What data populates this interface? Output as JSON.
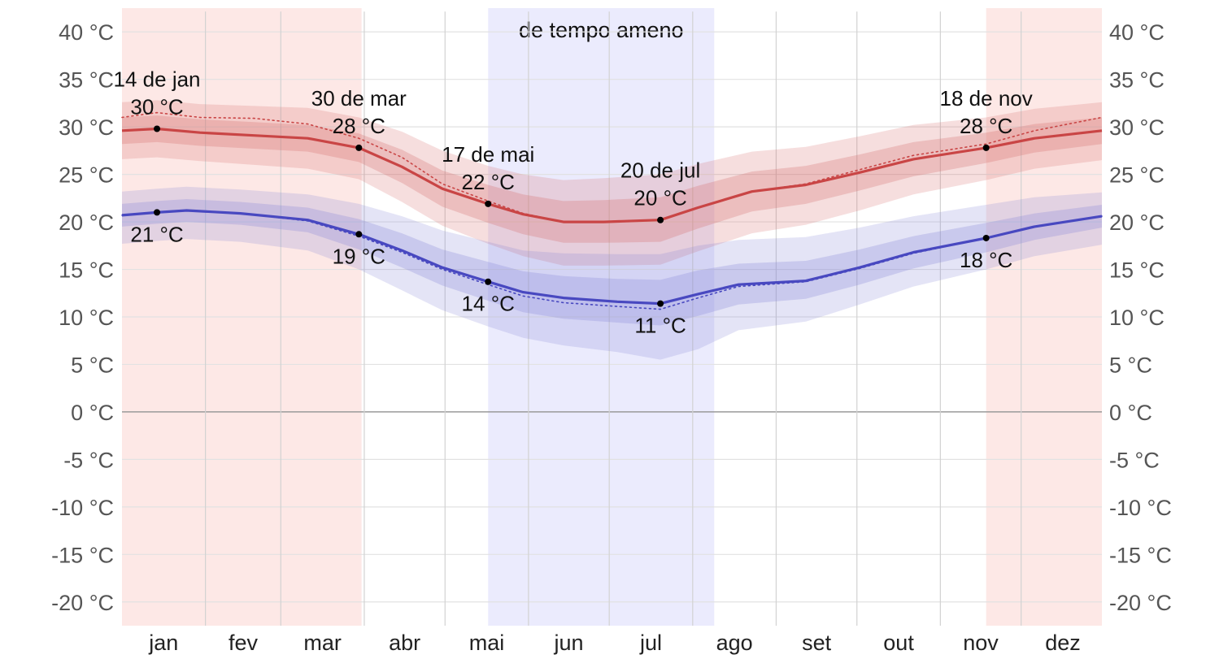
{
  "chart_data": {
    "type": "line",
    "y_unit_suffix": " °C",
    "ylim": [
      -22.5,
      42.5
    ],
    "y_ticks": [
      40,
      35,
      30,
      25,
      20,
      15,
      10,
      5,
      0,
      -5,
      -10,
      -15,
      -20
    ],
    "y_tick_labels": [
      "40 °C",
      "35 °C",
      "30 °C",
      "25 °C",
      "20 °C",
      "15 °C",
      "10 °C",
      "5 °C",
      "0 °C",
      "-5 °C",
      "-10 °C",
      "-15 °C",
      "-20 °C"
    ],
    "x_range_days": [
      1,
      365
    ],
    "months": [
      "jan",
      "fev",
      "mar",
      "abr",
      "mai",
      "jun",
      "jul",
      "ago",
      "set",
      "out",
      "nov",
      "dez"
    ],
    "month_start_days": [
      1,
      32,
      60,
      91,
      121,
      152,
      182,
      213,
      244,
      274,
      305,
      335
    ],
    "season_bands": [
      {
        "name": "warm-season",
        "start_day": 1,
        "end_day": 90,
        "color": "#fde8e6"
      },
      {
        "name": "warm-season",
        "start_day": 322,
        "end_day": 365,
        "color": "#fde8e6"
      },
      {
        "name": "cool-season",
        "start_day": 137,
        "end_day": 221,
        "color": "#ebebfd",
        "label": "de tempo ameno"
      }
    ],
    "series": [
      {
        "key": "high",
        "color": "#c94545",
        "band_color": "#d46a6a",
        "points": [
          {
            "day": 1,
            "mean": 29.6,
            "p25": 28.2,
            "p75": 31.0,
            "p10": 26.6,
            "p90": 32.6,
            "dotted": 31.0
          },
          {
            "day": 14,
            "mean": 29.8,
            "p25": 28.4,
            "p75": 31.2,
            "p10": 26.8,
            "p90": 32.8,
            "dotted": 31.5
          },
          {
            "day": 30,
            "mean": 29.4,
            "p25": 28.0,
            "p75": 30.8,
            "p10": 26.4,
            "p90": 32.4,
            "dotted": 31.0
          },
          {
            "day": 50,
            "mean": 29.1,
            "p25": 27.7,
            "p75": 30.5,
            "p10": 26.0,
            "p90": 32.2,
            "dotted": 30.9
          },
          {
            "day": 70,
            "mean": 28.8,
            "p25": 27.4,
            "p75": 30.2,
            "p10": 25.6,
            "p90": 32.0,
            "dotted": 30.3
          },
          {
            "day": 89,
            "mean": 27.8,
            "p25": 26.3,
            "p75": 29.3,
            "p10": 24.5,
            "p90": 31.0,
            "dotted": 28.8
          },
          {
            "day": 105,
            "mean": 25.8,
            "p25": 24.1,
            "p75": 27.6,
            "p10": 22.1,
            "p90": 29.5,
            "dotted": 26.8
          },
          {
            "day": 120,
            "mean": 23.5,
            "p25": 21.6,
            "p75": 25.4,
            "p10": 19.6,
            "p90": 27.5,
            "dotted": 24.0
          },
          {
            "day": 137,
            "mean": 21.9,
            "p25": 19.9,
            "p75": 23.9,
            "p10": 17.7,
            "p90": 25.9,
            "dotted": 22.2
          },
          {
            "day": 150,
            "mean": 20.8,
            "p25": 18.7,
            "p75": 22.9,
            "p10": 16.4,
            "p90": 25.0,
            "dotted": 20.9
          },
          {
            "day": 165,
            "mean": 20.0,
            "p25": 17.8,
            "p75": 22.2,
            "p10": 15.4,
            "p90": 24.4,
            "dotted": 20.0
          },
          {
            "day": 180,
            "mean": 20.0,
            "p25": 17.8,
            "p75": 22.3,
            "p10": 15.4,
            "p90": 24.6,
            "dotted": 20.0
          },
          {
            "day": 201,
            "mean": 20.2,
            "p25": 17.9,
            "p75": 22.6,
            "p10": 15.5,
            "p90": 25.0,
            "dotted": 20.2
          },
          {
            "day": 215,
            "mean": 21.5,
            "p25": 19.3,
            "p75": 23.8,
            "p10": 16.9,
            "p90": 26.1,
            "dotted": 21.5
          },
          {
            "day": 235,
            "mean": 23.2,
            "p25": 21.1,
            "p75": 25.3,
            "p10": 18.8,
            "p90": 27.4,
            "dotted": 23.2
          },
          {
            "day": 255,
            "mean": 23.9,
            "p25": 21.9,
            "p75": 25.9,
            "p10": 19.7,
            "p90": 27.9,
            "dotted": 24.0
          },
          {
            "day": 275,
            "mean": 25.2,
            "p25": 23.3,
            "p75": 27.1,
            "p10": 21.2,
            "p90": 29.0,
            "dotted": 25.5
          },
          {
            "day": 295,
            "mean": 26.6,
            "p25": 24.8,
            "p75": 28.4,
            "p10": 22.9,
            "p90": 30.2,
            "dotted": 27.0
          },
          {
            "day": 322,
            "mean": 27.8,
            "p25": 26.2,
            "p75": 29.4,
            "p10": 24.4,
            "p90": 31.0,
            "dotted": 28.2
          },
          {
            "day": 340,
            "mean": 28.8,
            "p25": 27.3,
            "p75": 30.3,
            "p10": 25.6,
            "p90": 31.9,
            "dotted": 29.6
          },
          {
            "day": 365,
            "mean": 29.6,
            "p25": 28.2,
            "p75": 31.0,
            "p10": 26.5,
            "p90": 32.6,
            "dotted": 31.0
          }
        ]
      },
      {
        "key": "low",
        "color": "#4848c0",
        "band_color": "#8484d8",
        "points": [
          {
            "day": 1,
            "mean": 20.7,
            "p25": 19.5,
            "p75": 21.9,
            "p10": 17.7,
            "p90": 23.2,
            "dotted": 20.7
          },
          {
            "day": 14,
            "mean": 21.0,
            "p25": 19.8,
            "p75": 22.2,
            "p10": 18.0,
            "p90": 23.5,
            "dotted": 21.0
          },
          {
            "day": 25,
            "mean": 21.2,
            "p25": 20.0,
            "p75": 22.4,
            "p10": 18.2,
            "p90": 23.7,
            "dotted": 21.2
          },
          {
            "day": 45,
            "mean": 20.9,
            "p25": 19.7,
            "p75": 22.1,
            "p10": 17.9,
            "p90": 23.4,
            "dotted": 20.9
          },
          {
            "day": 70,
            "mean": 20.2,
            "p25": 18.9,
            "p75": 21.5,
            "p10": 17.0,
            "p90": 22.9,
            "dotted": 20.1
          },
          {
            "day": 89,
            "mean": 18.7,
            "p25": 17.1,
            "p75": 20.3,
            "p10": 15.0,
            "p90": 21.9,
            "dotted": 18.5
          },
          {
            "day": 105,
            "mean": 17.0,
            "p25": 15.2,
            "p75": 18.8,
            "p10": 12.8,
            "p90": 20.6,
            "dotted": 16.8
          },
          {
            "day": 120,
            "mean": 15.2,
            "p25": 13.3,
            "p75": 17.1,
            "p10": 10.7,
            "p90": 19.1,
            "dotted": 15.0
          },
          {
            "day": 137,
            "mean": 13.7,
            "p25": 11.7,
            "p75": 15.8,
            "p10": 9.0,
            "p90": 17.9,
            "dotted": 13.4
          },
          {
            "day": 150,
            "mean": 12.6,
            "p25": 10.5,
            "p75": 14.8,
            "p10": 7.8,
            "p90": 17.0,
            "dotted": 12.2
          },
          {
            "day": 165,
            "mean": 12.0,
            "p25": 9.8,
            "p75": 14.3,
            "p10": 7.0,
            "p90": 16.7,
            "dotted": 11.5
          },
          {
            "day": 185,
            "mean": 11.6,
            "p25": 9.4,
            "p75": 14.0,
            "p10": 6.3,
            "p90": 16.6,
            "dotted": 11.1
          },
          {
            "day": 201,
            "mean": 11.4,
            "p25": 9.1,
            "p75": 13.9,
            "p10": 5.5,
            "p90": 16.6,
            "dotted": 10.8
          },
          {
            "day": 215,
            "mean": 12.4,
            "p25": 10.1,
            "p75": 14.9,
            "p10": 6.6,
            "p90": 17.5,
            "dotted": 12.0
          },
          {
            "day": 230,
            "mean": 13.4,
            "p25": 11.3,
            "p75": 15.6,
            "p10": 8.6,
            "p90": 18.1,
            "dotted": 13.2
          },
          {
            "day": 255,
            "mean": 13.8,
            "p25": 11.9,
            "p75": 15.9,
            "p10": 9.5,
            "p90": 18.4,
            "dotted": 13.7
          },
          {
            "day": 275,
            "mean": 15.2,
            "p25": 13.4,
            "p75": 17.1,
            "p10": 11.3,
            "p90": 19.4,
            "dotted": 15.1
          },
          {
            "day": 295,
            "mean": 16.8,
            "p25": 15.1,
            "p75": 18.5,
            "p10": 13.2,
            "p90": 20.6,
            "dotted": 16.7
          },
          {
            "day": 322,
            "mean": 18.3,
            "p25": 16.8,
            "p75": 19.9,
            "p10": 15.0,
            "p90": 21.8,
            "dotted": 18.3
          },
          {
            "day": 340,
            "mean": 19.5,
            "p25": 18.1,
            "p75": 20.9,
            "p10": 16.4,
            "p90": 22.6,
            "dotted": 19.5
          },
          {
            "day": 365,
            "mean": 20.6,
            "p25": 19.4,
            "p75": 21.8,
            "p10": 17.6,
            "p90": 23.1,
            "dotted": 20.6
          }
        ]
      }
    ],
    "annotations": [
      {
        "series": "high",
        "day": 14,
        "value": 29.8,
        "date": "14 de jan",
        "text": "30 °C",
        "position": "above"
      },
      {
        "series": "high",
        "day": 89,
        "value": 27.8,
        "date": "30 de mar",
        "text": "28 °C",
        "position": "above"
      },
      {
        "series": "high",
        "day": 137,
        "value": 21.9,
        "date": "17 de mai",
        "text": "22 °C",
        "position": "above"
      },
      {
        "series": "high",
        "day": 201,
        "value": 20.2,
        "date": "20 de jul",
        "text": "20 °C",
        "position": "above"
      },
      {
        "series": "high",
        "day": 322,
        "value": 27.8,
        "date": "18 de nov",
        "text": "28 °C",
        "position": "above"
      },
      {
        "series": "low",
        "day": 14,
        "value": 21.0,
        "text": "21 °C",
        "position": "below"
      },
      {
        "series": "low",
        "day": 89,
        "value": 18.7,
        "text": "19 °C",
        "position": "below"
      },
      {
        "series": "low",
        "day": 137,
        "value": 13.7,
        "text": "14 °C",
        "position": "below"
      },
      {
        "series": "low",
        "day": 201,
        "value": 11.4,
        "text": "11 °C",
        "position": "below"
      },
      {
        "series": "low",
        "day": 322,
        "value": 18.3,
        "text": "18 °C",
        "position": "below"
      }
    ]
  }
}
